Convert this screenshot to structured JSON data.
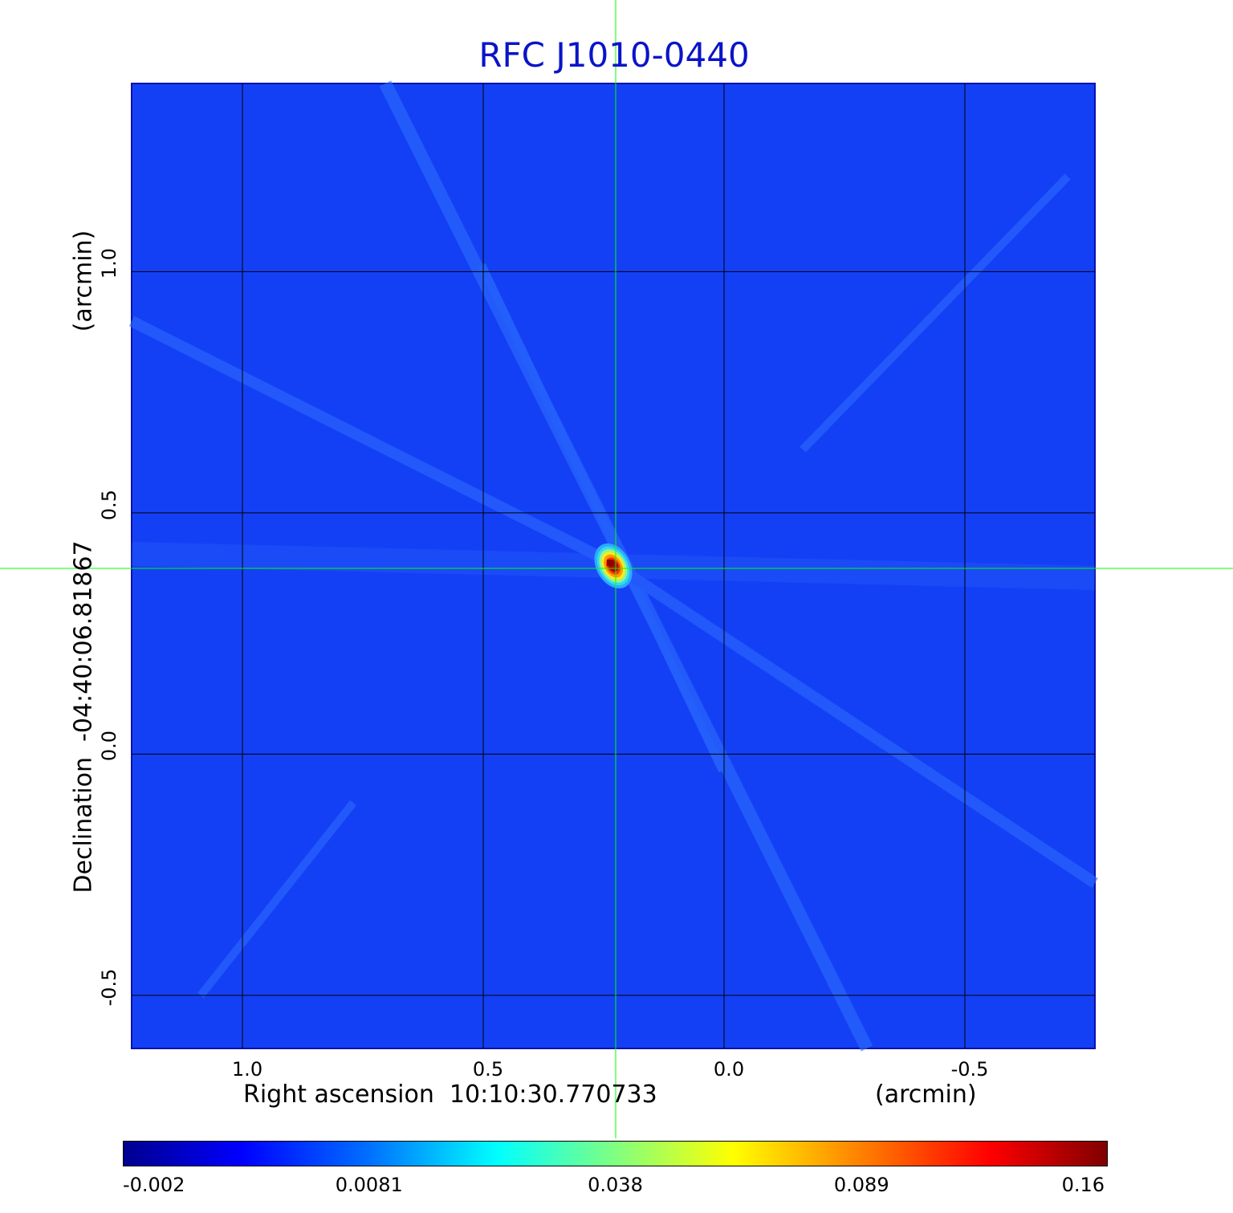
{
  "chart_data": {
    "type": "heatmap",
    "title": "RFC J1010-0440",
    "xlabel": "Right ascension  10:10:30.770733",
    "xunit": "(arcmin)",
    "ylabel": "Declination  -04:40:06.81867",
    "yunit": "(arcmin)",
    "x_ticks": [
      "1.0",
      "0.5",
      "0.0",
      "-0.5"
    ],
    "x_tick_values": [
      1.0,
      0.5,
      0.0,
      -0.5
    ],
    "y_ticks": [
      "1.0",
      "0.5",
      "0.0",
      "-0.5"
    ],
    "y_tick_values": [
      1.0,
      0.5,
      0.0,
      -0.5
    ],
    "xlim": [
      1.23,
      -0.77
    ],
    "ylim": [
      -0.61,
      1.39
    ],
    "grid": true,
    "crosshair": {
      "x": 0.225,
      "y": 0.385,
      "color": "#00ff00"
    },
    "source_peak": {
      "x": 0.23,
      "y": 0.39,
      "value": 0.16
    },
    "colormap": "jet",
    "colorbar_ticks": [
      "-0.002",
      "0.0081",
      "0.038",
      "0.089",
      "0.16"
    ],
    "colorbar_tick_fractions": [
      0.0,
      0.25,
      0.5,
      0.75,
      1.0
    ],
    "background_value": 0.004
  },
  "colors": {
    "title": "#0a14c8",
    "grid": "#000000",
    "crosshair": "#00ff00",
    "background_field": "#1440f5"
  }
}
